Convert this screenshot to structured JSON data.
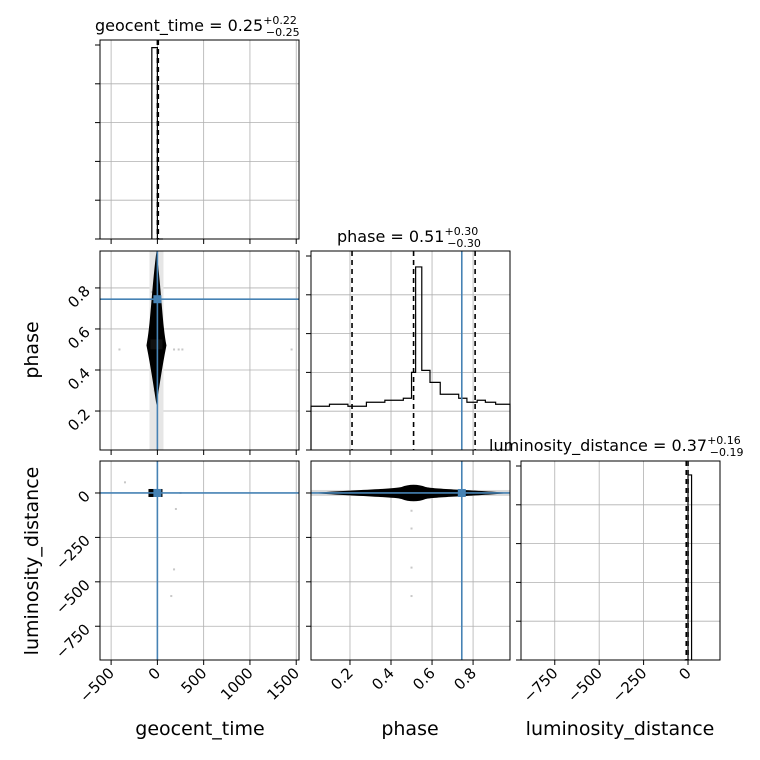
{
  "chart_data": {
    "type": "corner",
    "parameters": [
      "geocent_time",
      "phase",
      "luminosity_distance"
    ],
    "truth": {
      "geocent_time": 0,
      "phase": 0.745,
      "luminosity_distance": 0
    },
    "colors": {
      "truth": "#4682b4",
      "hist": "#000000",
      "grid": "#b0b0b0",
      "scatter": "#c8c8c8"
    },
    "titles": [
      {
        "param": "geocent_time",
        "label": "geocent_time = 0.25",
        "sup": "+0.22",
        "sub": "−0.25"
      },
      {
        "param": "phase",
        "label": "phase = 0.51",
        "sup": "+0.30",
        "sub": "−0.30"
      },
      {
        "param": "luminosity_distance",
        "label": "luminosity_distance = 0.37",
        "sup": "+0.16",
        "sub": "−0.19"
      }
    ],
    "axes": {
      "geocent_time": {
        "range": [
          -620,
          1530
        ],
        "ticks": [
          -500,
          0,
          500,
          1000,
          1500
        ],
        "tick_labels": [
          "−500",
          "0",
          "500",
          "1000",
          "1500"
        ]
      },
      "phase": {
        "range": [
          0.01,
          0.98
        ],
        "ticks": [
          0.2,
          0.4,
          0.6,
          0.8
        ],
        "tick_labels": [
          "0.2",
          "0.4",
          "0.6",
          "0.8"
        ]
      },
      "luminosity_distance": {
        "range": [
          -940,
          180
        ],
        "ticks": [
          -750,
          -500,
          -250,
          0
        ],
        "tick_labels": [
          "−750",
          "−500",
          "−250",
          "0"
        ]
      }
    },
    "axis_labels": {
      "x": [
        "geocent_time",
        "phase",
        "luminosity_distance"
      ],
      "y": [
        "phase",
        "luminosity_distance"
      ]
    },
    "histograms": {
      "geocent_time": {
        "bin_edges": [
          -60,
          0,
          60
        ],
        "counts": [
          1.0,
          0.0
        ],
        "quantile_lines": [
          0,
          10
        ],
        "ylim": [
          0,
          1.04
        ]
      },
      "phase": {
        "bin_edges": [
          0.01,
          0.1,
          0.19,
          0.28,
          0.37,
          0.46,
          0.5,
          0.52,
          0.55,
          0.59,
          0.64,
          0.68,
          0.73,
          0.77,
          0.82,
          0.86,
          0.91,
          0.98
        ],
        "counts": [
          0.22,
          0.23,
          0.22,
          0.24,
          0.25,
          0.26,
          0.39,
          0.92,
          0.4,
          0.34,
          0.28,
          0.28,
          0.26,
          0.24,
          0.25,
          0.24,
          0.23
        ],
        "quantile_lines": [
          0.21,
          0.51,
          0.81
        ],
        "ylim": [
          0,
          1.0
        ]
      },
      "luminosity_distance": {
        "bin_edges": [
          -20,
          0,
          20
        ],
        "counts": [
          0.0,
          0.93
        ],
        "quantile_lines": [
          -10,
          0
        ],
        "ylim": [
          0,
          1.0
        ]
      }
    },
    "scatter": {
      "phase_vs_geocent_time": [
        [
          -410,
          0.5
        ],
        [
          180,
          0.5
        ],
        [
          230,
          0.5
        ],
        [
          270,
          0.5
        ],
        [
          1450,
          0.5
        ],
        [
          -60,
          0.78
        ],
        [
          -30,
          0.3
        ]
      ],
      "luminosity_distance_vs_geocent_time": [
        [
          -350,
          60
        ],
        [
          180,
          -430
        ],
        [
          150,
          -580
        ],
        [
          200,
          -90
        ],
        [
          250,
          0
        ]
      ],
      "luminosity_distance_vs_phase": [
        [
          0.5,
          -100
        ],
        [
          0.5,
          -200
        ],
        [
          0.5,
          -420
        ],
        [
          0.5,
          -580
        ],
        [
          0.48,
          0
        ],
        [
          0.55,
          -10
        ]
      ]
    }
  }
}
